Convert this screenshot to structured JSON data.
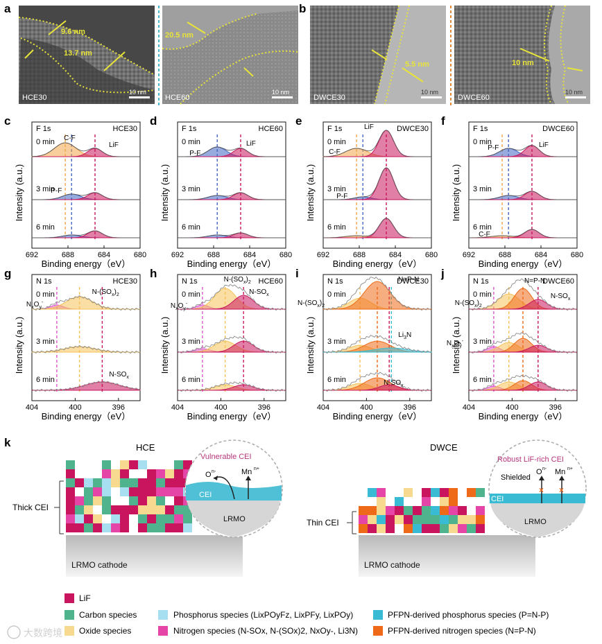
{
  "panel_letters": {
    "a": "a",
    "b": "b",
    "c": "c",
    "d": "d",
    "e": "e",
    "f": "f",
    "g": "g",
    "h": "h",
    "i": "i",
    "j": "j",
    "k": "k"
  },
  "tem": [
    {
      "label": "HCE30",
      "scalebar": "10 nm",
      "measures": [
        "9.6 nm",
        "13.7 nm"
      ]
    },
    {
      "label": "HCE60",
      "scalebar": "10 nm",
      "measures": [
        "20.5 nm"
      ]
    },
    {
      "label": "DWCE30",
      "scalebar": "10 nm",
      "measures": [
        "5.5 nm"
      ]
    },
    {
      "label": "DWCE60",
      "scalebar": "10 nm",
      "measures": [
        "10 nm"
      ]
    }
  ],
  "xps_common": {
    "ylabel": "Intensity (a.u.)",
    "xlabel": "Binding energy（eV）",
    "times": [
      "0 min",
      "3 min",
      "6 min"
    ]
  },
  "chart_data": [
    {
      "type": "area",
      "panel": "c",
      "element": "F 1s",
      "title": "HCE30",
      "xlim": [
        692,
        680
      ],
      "xticks": [
        "692",
        "688",
        "684",
        "680"
      ],
      "peaks": [
        {
          "name": "C-F",
          "position": 688.3
        },
        {
          "name": "P-F",
          "position": 687.6
        },
        {
          "name": "LiF",
          "position": 685.0
        }
      ],
      "labels": {
        "cf": "C-F",
        "pf": "P-F",
        "lif": "LiF"
      }
    },
    {
      "type": "area",
      "panel": "d",
      "element": "F 1s",
      "title": "HCE60",
      "xlim": [
        692,
        680
      ],
      "xticks": [
        "692",
        "688",
        "684",
        "680"
      ],
      "peaks": [
        {
          "name": "P-F",
          "position": 687.6
        },
        {
          "name": "LiF",
          "position": 685.0
        }
      ],
      "labels": {
        "pf": "P-F",
        "lif": "LiF"
      }
    },
    {
      "type": "area",
      "panel": "e",
      "element": "F 1s",
      "title": "DWCE30",
      "xlim": [
        692,
        680
      ],
      "xticks": [
        "692",
        "688",
        "684",
        "680"
      ],
      "peaks": [
        {
          "name": "C-F",
          "position": 688.3
        },
        {
          "name": "P-F",
          "position": 687.6
        },
        {
          "name": "LiF",
          "position": 685.0
        }
      ],
      "labels": {
        "cf": "C-F",
        "pf": "P-F",
        "lif": "LiF"
      }
    },
    {
      "type": "area",
      "panel": "f",
      "element": "F 1s",
      "title": "DWCE60",
      "xlim": [
        692,
        680
      ],
      "xticks": [
        "692",
        "688",
        "684",
        "680"
      ],
      "peaks": [
        {
          "name": "C-F",
          "position": 688.3
        },
        {
          "name": "P-F",
          "position": 687.6
        },
        {
          "name": "LiF",
          "position": 685.0
        }
      ],
      "labels": {
        "cf": "C-F",
        "pf": "P-F",
        "lif": "LiF"
      }
    },
    {
      "type": "area",
      "panel": "g",
      "element": "N 1s",
      "title": "HCE30",
      "xlim": [
        404,
        394
      ],
      "xticks": [
        "404",
        "400",
        "396"
      ],
      "peaks": [
        {
          "name": "NxOy-",
          "position": 401.7
        },
        {
          "name": "N-(SOx)2",
          "position": 399.6
        },
        {
          "name": "N-SOx",
          "position": 397.5
        }
      ],
      "labels": {
        "nxoy": "NxOy-",
        "nsox2": "N-(SOx)2",
        "nsox": "N-SOx"
      }
    },
    {
      "type": "area",
      "panel": "h",
      "element": "N 1s",
      "title": "HCE60",
      "xlim": [
        404,
        394
      ],
      "xticks": [
        "404",
        "400",
        "396"
      ],
      "peaks": [
        {
          "name": "NxOy-",
          "position": 401.7
        },
        {
          "name": "N-(SOx)2",
          "position": 399.6
        },
        {
          "name": "N-SOx",
          "position": 397.9
        }
      ],
      "labels": {
        "nxoy": "NxOy-",
        "nsox2": "N-(SOx)2",
        "nsox": "N-SOx"
      }
    },
    {
      "type": "area",
      "panel": "i",
      "element": "N 1s",
      "title": "DWCE30",
      "xlim": [
        404,
        394
      ],
      "xticks": [
        "404",
        "400",
        "396"
      ],
      "peaks": [
        {
          "name": "N-(SOx)2",
          "position": 400.6
        },
        {
          "name": "N=P-N",
          "position": 399.0
        },
        {
          "name": "Li3N",
          "position": 397.7
        },
        {
          "name": "N-SOx",
          "position": 397.9
        }
      ],
      "labels": {
        "nsox2": "N-(SOx)2",
        "npn": "N=P-N",
        "li3n": "Li3N",
        "nsox": "N-SOx"
      }
    },
    {
      "type": "area",
      "panel": "j",
      "element": "N 1s",
      "title": "DWCE60",
      "xlim": [
        404,
        394
      ],
      "xticks": [
        "404",
        "400",
        "396"
      ],
      "peaks": [
        {
          "name": "NxOy-",
          "position": 401.7
        },
        {
          "name": "N-(SOx)2",
          "position": 400.3
        },
        {
          "name": "N=P-N",
          "position": 399.0
        },
        {
          "name": "N-SOx",
          "position": 397.6
        }
      ],
      "labels": {
        "nxoy": "NxOy-",
        "nsox2": "N-(SOx)2",
        "npn": "N=P-N",
        "nsox": "N-SOx"
      }
    }
  ],
  "schematic": {
    "hce": {
      "title": "HCE",
      "cei_label": "Thick CEI",
      "cathode": "LRMO cathode",
      "inset_title": "Vulnerable CEI",
      "cei": "CEI",
      "lrmo": "LRMO",
      "o": "O",
      "o_sup": "n-",
      "mn": "Mn",
      "mn_sup": "n+"
    },
    "dwce": {
      "title": "DWCE",
      "cei_label": "Thin CEI",
      "cathode": "LRMO cathode",
      "inset_title": "Robust LiF-rich CEI",
      "shielded": "Shielded",
      "cei": "CEI",
      "lrmo": "LRMO",
      "o": "O",
      "o_sup": "n-",
      "mn": "Mn",
      "mn_sup": "n+"
    }
  },
  "legend": [
    {
      "label": "LiF",
      "color": "#c8155d"
    },
    {
      "label": "Carbon species",
      "color": "#4fb38e"
    },
    {
      "label": "Oxide species",
      "color": "#f7d98f"
    },
    {
      "label": "Phosphorus species (LixPOyFz, LixPFy, LixPOy)",
      "color": "#a7dff0"
    },
    {
      "label": "Nitrogen species (N-SOx, N-(SOx)2, NxOy-, Li3N)",
      "color": "#e645a8"
    },
    {
      "label": "PFPN-derived phosphorus species (P=N-P)",
      "color": "#39bcd3"
    },
    {
      "label": "PFPN-derived nitrogen species (N=P-N)",
      "color": "#ee6a18"
    }
  ],
  "watermark": "大数跨境",
  "colors": {
    "lif": "#c8155d",
    "cf": "#f1a54a",
    "pf": "#4466c2",
    "yellow": "#d9d33a",
    "npn": "#ee6a18",
    "nsox2": "#f5c35a",
    "nxoy": "#dd55cc",
    "teal": "#39bcd3"
  }
}
